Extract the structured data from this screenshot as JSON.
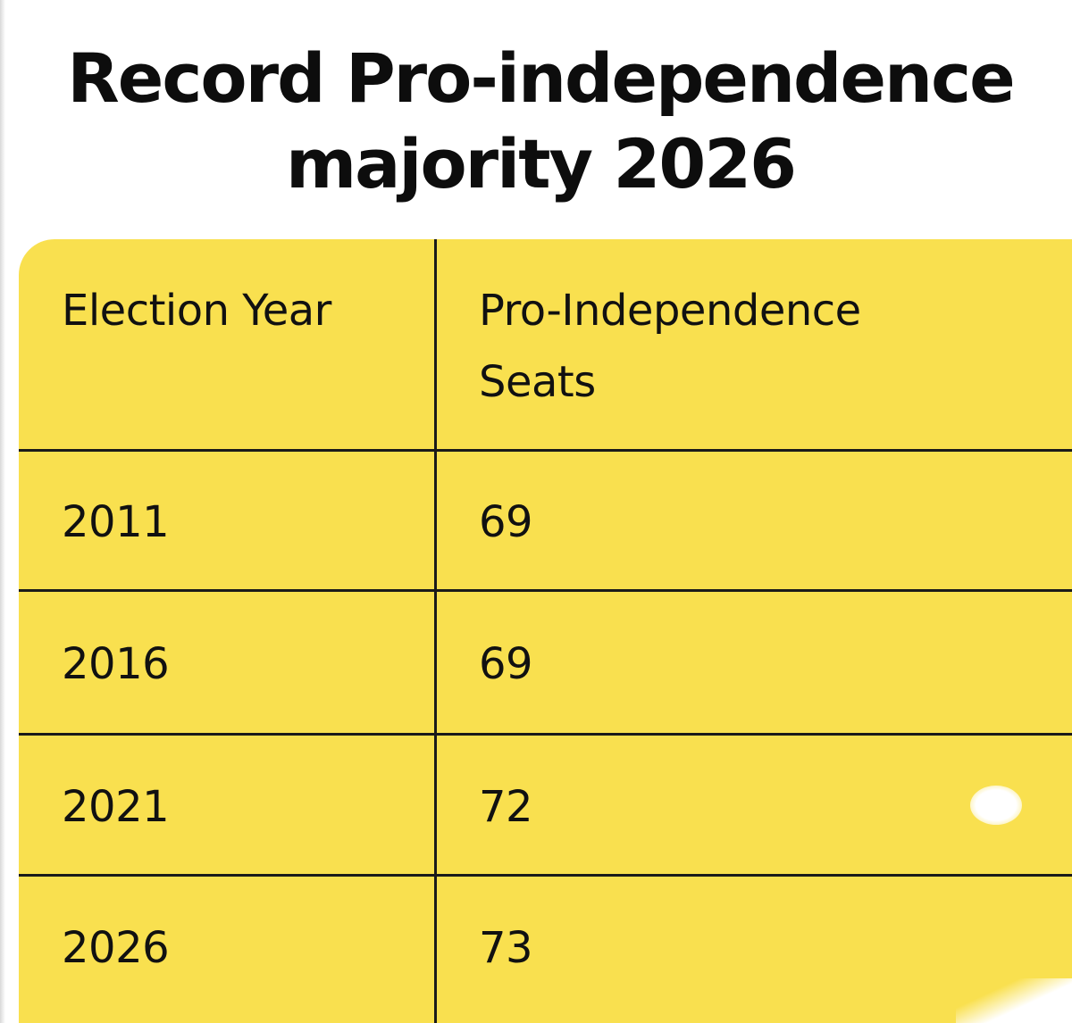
{
  "chart_data": {
    "type": "table",
    "title_lines": [
      "Record Pro-independence",
      "majority 2026"
    ],
    "columns": [
      "Election Year",
      "Pro-Independence Seats"
    ],
    "header_col2_lines": [
      "Pro-Independence",
      "Seats"
    ],
    "rows": [
      {
        "year": "2011",
        "seats": "69"
      },
      {
        "year": "2016",
        "seats": "69"
      },
      {
        "year": "2021",
        "seats": "72"
      },
      {
        "year": "2026",
        "seats": "73"
      }
    ],
    "colors": {
      "table_background": "#f9e04f",
      "rule": "#1a1a1a",
      "text": "#111111"
    }
  }
}
